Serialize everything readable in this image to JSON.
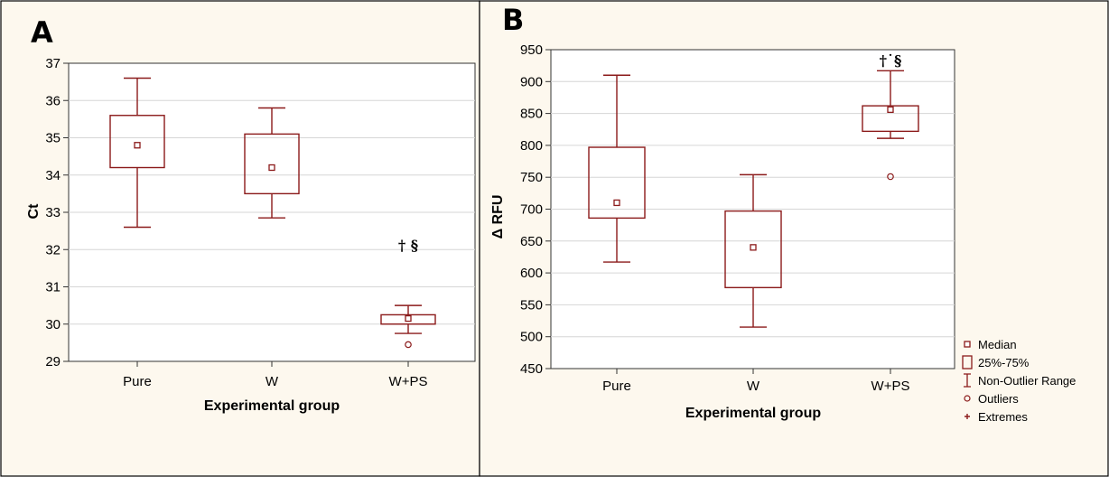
{
  "colors": {
    "box": "#8b1a1a",
    "panel_bg": "#fdf8ee",
    "plot_bg": "#ffffff"
  },
  "chart_data": [
    {
      "type": "box",
      "panel_label": "A",
      "xlabel": "Experimental group",
      "ylabel": "Ct",
      "ylim": [
        29,
        37
      ],
      "yticks": [
        "29",
        "30",
        "31",
        "32",
        "33",
        "34",
        "35",
        "36",
        "37"
      ],
      "categories": [
        "Pure",
        "W",
        "W+PS"
      ],
      "boxes": [
        {
          "category": "Pure",
          "median": 34.8,
          "q1": 34.2,
          "q3": 35.6,
          "whisker_low": 32.6,
          "whisker_high": 36.6,
          "outliers": []
        },
        {
          "category": "W",
          "median": 34.2,
          "q1": 33.5,
          "q3": 35.1,
          "whisker_low": 32.85,
          "whisker_high": 35.8,
          "outliers": []
        },
        {
          "category": "W+PS",
          "median": 30.15,
          "q1": 30.0,
          "q3": 30.25,
          "whisker_low": 29.75,
          "whisker_high": 30.5,
          "outliers": [
            29.45
          ]
        }
      ],
      "annotations": [
        {
          "category": "W+PS",
          "text": "† §",
          "y": 32.1
        }
      ],
      "grid": true
    },
    {
      "type": "box",
      "panel_label": "B",
      "xlabel": "Experimental group",
      "ylabel": "Δ RFU",
      "ylim": [
        450,
        950
      ],
      "yticks": [
        "450",
        "500",
        "550",
        "600",
        "650",
        "700",
        "750",
        "800",
        "850",
        "900",
        "950"
      ],
      "categories": [
        "Pure",
        "W",
        "W+PS"
      ],
      "boxes": [
        {
          "category": "Pure",
          "median": 710,
          "q1": 686,
          "q3": 797,
          "whisker_low": 617,
          "whisker_high": 910,
          "outliers": []
        },
        {
          "category": "W",
          "median": 640,
          "q1": 577,
          "q3": 697,
          "whisker_low": 515,
          "whisker_high": 754,
          "outliers": []
        },
        {
          "category": "W+PS",
          "median": 856,
          "q1": 822,
          "q3": 862,
          "whisker_low": 811,
          "whisker_high": 917,
          "outliers": [
            751
          ]
        }
      ],
      "annotations": [
        {
          "category": "W+PS",
          "text": "†˙§",
          "y": 932
        }
      ],
      "grid": true,
      "legend": {
        "position": "right-bottom",
        "entries": [
          {
            "symbol": "square-small",
            "label": "Median"
          },
          {
            "symbol": "box",
            "label": "25%-75%"
          },
          {
            "symbol": "whisker",
            "label": "Non-Outlier Range"
          },
          {
            "symbol": "circle",
            "label": "Outliers"
          },
          {
            "symbol": "plus",
            "label": "Extremes"
          }
        ]
      }
    }
  ]
}
